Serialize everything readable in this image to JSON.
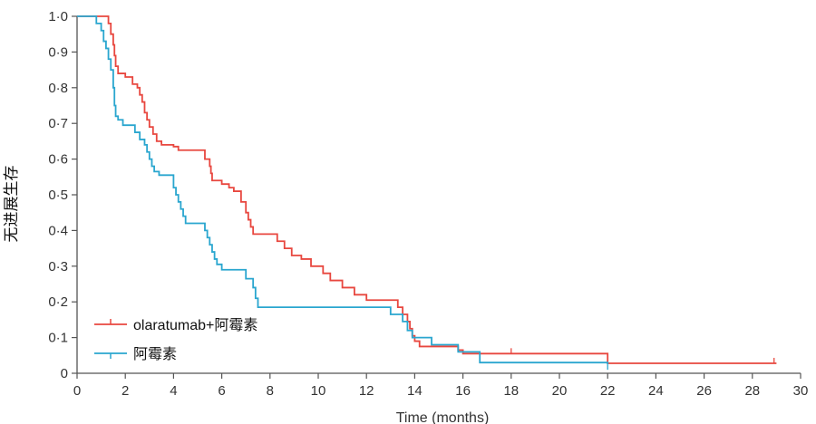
{
  "chart_data": {
    "type": "line",
    "subtype": "kaplan-meier step",
    "title": "",
    "xlabel": "Time (months)",
    "ylabel": "无进展生存",
    "xlim": [
      0,
      30
    ],
    "ylim": [
      0,
      1.0
    ],
    "x_ticks": [
      0,
      2,
      4,
      6,
      8,
      10,
      12,
      14,
      16,
      18,
      20,
      22,
      24,
      26,
      28,
      30
    ],
    "y_ticks": [
      0,
      0.1,
      0.2,
      0.3,
      0.4,
      0.5,
      0.6,
      0.7,
      0.8,
      0.9,
      1.0
    ],
    "y_tick_labels": [
      "0",
      "0·1",
      "0·2",
      "0·3",
      "0·4",
      "0·5",
      "0·6",
      "0·7",
      "0·8",
      "0·9",
      "1·0"
    ],
    "grid": false,
    "legend_position": "bottom-left",
    "series": [
      {
        "name": "olaratumab+阿霉素",
        "color": "#e8473f",
        "points": [
          [
            0,
            1.0
          ],
          [
            1.3,
            0.98
          ],
          [
            1.4,
            0.95
          ],
          [
            1.5,
            0.92
          ],
          [
            1.55,
            0.89
          ],
          [
            1.6,
            0.86
          ],
          [
            1.7,
            0.84
          ],
          [
            2.0,
            0.83
          ],
          [
            2.3,
            0.81
          ],
          [
            2.5,
            0.8
          ],
          [
            2.6,
            0.78
          ],
          [
            2.7,
            0.76
          ],
          [
            2.8,
            0.73
          ],
          [
            2.9,
            0.71
          ],
          [
            3.0,
            0.69
          ],
          [
            3.15,
            0.67
          ],
          [
            3.3,
            0.65
          ],
          [
            3.5,
            0.64
          ],
          [
            4.0,
            0.635
          ],
          [
            4.2,
            0.625
          ],
          [
            5.3,
            0.6
          ],
          [
            5.5,
            0.58
          ],
          [
            5.55,
            0.56
          ],
          [
            5.6,
            0.54
          ],
          [
            6.0,
            0.53
          ],
          [
            6.3,
            0.52
          ],
          [
            6.5,
            0.51
          ],
          [
            6.8,
            0.48
          ],
          [
            7.0,
            0.45
          ],
          [
            7.1,
            0.43
          ],
          [
            7.2,
            0.41
          ],
          [
            7.3,
            0.39
          ],
          [
            8.3,
            0.37
          ],
          [
            8.6,
            0.35
          ],
          [
            8.9,
            0.33
          ],
          [
            9.3,
            0.32
          ],
          [
            9.7,
            0.3
          ],
          [
            10.2,
            0.28
          ],
          [
            10.5,
            0.26
          ],
          [
            11.0,
            0.24
          ],
          [
            11.5,
            0.22
          ],
          [
            12.0,
            0.205
          ],
          [
            13.0,
            0.205
          ],
          [
            13.3,
            0.185
          ],
          [
            13.5,
            0.165
          ],
          [
            13.7,
            0.145
          ],
          [
            13.8,
            0.125
          ],
          [
            13.9,
            0.105
          ],
          [
            14.0,
            0.09
          ],
          [
            14.2,
            0.075
          ],
          [
            15.8,
            0.065
          ],
          [
            16.0,
            0.055
          ],
          [
            22.0,
            0.028
          ],
          [
            29.0,
            0.028
          ]
        ],
        "censors": [
          [
            18.0,
            0.055
          ],
          [
            28.9,
            0.028
          ]
        ]
      },
      {
        "name": "阿霉素",
        "color": "#2aa6cf",
        "points": [
          [
            0,
            1.0
          ],
          [
            0.8,
            0.98
          ],
          [
            1.0,
            0.96
          ],
          [
            1.1,
            0.93
          ],
          [
            1.2,
            0.91
          ],
          [
            1.3,
            0.88
          ],
          [
            1.4,
            0.85
          ],
          [
            1.5,
            0.8
          ],
          [
            1.55,
            0.75
          ],
          [
            1.6,
            0.72
          ],
          [
            1.7,
            0.71
          ],
          [
            1.9,
            0.695
          ],
          [
            2.4,
            0.675
          ],
          [
            2.6,
            0.655
          ],
          [
            2.8,
            0.64
          ],
          [
            2.9,
            0.62
          ],
          [
            3.0,
            0.6
          ],
          [
            3.1,
            0.58
          ],
          [
            3.2,
            0.565
          ],
          [
            3.4,
            0.555
          ],
          [
            4.0,
            0.52
          ],
          [
            4.1,
            0.5
          ],
          [
            4.2,
            0.48
          ],
          [
            4.3,
            0.46
          ],
          [
            4.4,
            0.44
          ],
          [
            4.5,
            0.42
          ],
          [
            5.3,
            0.4
          ],
          [
            5.4,
            0.38
          ],
          [
            5.5,
            0.36
          ],
          [
            5.6,
            0.34
          ],
          [
            5.7,
            0.32
          ],
          [
            5.8,
            0.305
          ],
          [
            6.0,
            0.29
          ],
          [
            7.0,
            0.265
          ],
          [
            7.3,
            0.24
          ],
          [
            7.4,
            0.21
          ],
          [
            7.5,
            0.185
          ],
          [
            13.0,
            0.165
          ],
          [
            13.5,
            0.145
          ],
          [
            13.7,
            0.12
          ],
          [
            13.9,
            0.1
          ],
          [
            14.7,
            0.08
          ],
          [
            15.8,
            0.06
          ],
          [
            16.7,
            0.03
          ],
          [
            22.0,
            0.025
          ]
        ],
        "censors": [
          [
            22.0,
            0.025
          ]
        ]
      }
    ]
  }
}
